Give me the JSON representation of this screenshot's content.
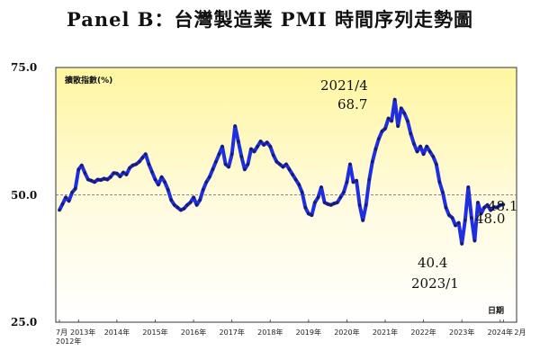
{
  "chart_data": {
    "type": "line",
    "title": "Panel B：台灣製造業 PMI 時間序列走勢圖",
    "ylabel": "擴散指數(%)",
    "xlabel": "日期",
    "ylim": [
      25,
      75
    ],
    "yticks": [
      "25.0",
      "50.0",
      "75.0"
    ],
    "reference_line": 50,
    "x_tick_labels": [
      "7月",
      "2013年",
      "2014年",
      "2015年",
      "2016年",
      "2017年",
      "2018年",
      "2019年",
      "2020年",
      "2021年",
      "2022年",
      "2023年",
      "2024年",
      "2月"
    ],
    "x_start_label": "2012年",
    "colors": {
      "line": "#1e2fe0",
      "marker": "#1a1a66",
      "bg_top": "#fff6a0",
      "bg_bottom": "#ffffff",
      "refline": "#666666"
    },
    "annotations": [
      {
        "text": "2021/4",
        "x": "2021-04",
        "y": 68.7
      },
      {
        "text": "68.7",
        "x": "2021-04",
        "y": 68.7
      },
      {
        "text": "40.4",
        "x": "2023-01",
        "y": 40.4
      },
      {
        "text": "2023/1",
        "x": "2023-01",
        "y": 40.4
      },
      {
        "text": "48.1",
        "x": "2024-02",
        "y": 48.1
      },
      {
        "text": "48.0",
        "x": "2024-01",
        "y": 48.0
      }
    ],
    "series": [
      {
        "x": [
          "2012-07",
          "2012-08",
          "2012-09",
          "2012-10",
          "2012-11",
          "2012-12",
          "2013-01",
          "2013-02",
          "2013-03",
          "2013-04",
          "2013-05",
          "2013-06",
          "2013-07",
          "2013-08",
          "2013-09",
          "2013-10",
          "2013-11",
          "2013-12",
          "2014-01",
          "2014-02",
          "2014-03",
          "2014-04",
          "2014-05",
          "2014-06",
          "2014-07",
          "2014-08",
          "2014-09",
          "2014-10",
          "2014-11",
          "2014-12",
          "2015-01",
          "2015-02",
          "2015-03",
          "2015-04",
          "2015-05",
          "2015-06",
          "2015-07",
          "2015-08",
          "2015-09",
          "2015-10",
          "2015-11",
          "2015-12",
          "2016-01",
          "2016-02",
          "2016-03",
          "2016-04",
          "2016-05",
          "2016-06",
          "2016-07",
          "2016-08",
          "2016-09",
          "2016-10",
          "2016-11",
          "2016-12",
          "2017-01",
          "2017-02",
          "2017-03",
          "2017-04",
          "2017-05",
          "2017-06",
          "2017-07",
          "2017-08",
          "2017-09",
          "2017-10",
          "2017-11",
          "2017-12",
          "2018-01",
          "2018-02",
          "2018-03",
          "2018-04",
          "2018-05",
          "2018-06",
          "2018-07",
          "2018-08",
          "2018-09",
          "2018-10",
          "2018-11",
          "2018-12",
          "2019-01",
          "2019-02",
          "2019-03",
          "2019-04",
          "2019-05",
          "2019-06",
          "2019-07",
          "2019-08",
          "2019-09",
          "2019-10",
          "2019-11",
          "2019-12",
          "2020-01",
          "2020-02",
          "2020-03",
          "2020-04",
          "2020-05",
          "2020-06",
          "2020-07",
          "2020-08",
          "2020-09",
          "2020-10",
          "2020-11",
          "2020-12",
          "2021-01",
          "2021-02",
          "2021-03",
          "2021-04",
          "2021-05",
          "2021-06",
          "2021-07",
          "2021-08",
          "2021-09",
          "2021-10",
          "2021-11",
          "2021-12",
          "2022-01",
          "2022-02",
          "2022-03",
          "2022-04",
          "2022-05",
          "2022-06",
          "2022-07",
          "2022-08",
          "2022-09",
          "2022-10",
          "2022-11",
          "2022-12",
          "2023-01",
          "2023-02",
          "2023-03",
          "2023-04",
          "2023-05",
          "2023-06",
          "2023-07",
          "2023-08",
          "2023-09",
          "2023-10",
          "2023-11",
          "2023-12",
          "2024-01",
          "2024-02"
        ],
        "values": [
          47.0,
          48.2,
          49.5,
          48.8,
          50.5,
          51.2,
          55.0,
          55.8,
          54.3,
          53.0,
          52.8,
          52.5,
          53.0,
          52.9,
          53.2,
          53.0,
          53.5,
          54.3,
          54.2,
          53.6,
          54.4,
          54.0,
          55.3,
          55.8,
          56.0,
          56.5,
          57.3,
          58.0,
          56.0,
          54.5,
          53.0,
          52.0,
          53.5,
          52.5,
          51.0,
          49.0,
          48.0,
          47.5,
          47.0,
          47.3,
          48.0,
          48.5,
          49.5,
          48.0,
          49.0,
          51.0,
          52.5,
          53.5,
          55.0,
          56.5,
          58.0,
          59.5,
          56.0,
          55.5,
          58.0,
          63.5,
          60.5,
          57.5,
          55.0,
          56.0,
          59.0,
          58.5,
          59.5,
          60.5,
          59.8,
          60.3,
          59.5,
          57.8,
          56.5,
          56.0,
          55.5,
          56.0,
          55.0,
          54.0,
          53.0,
          52.0,
          50.5,
          47.5,
          46.3,
          46.0,
          48.5,
          49.5,
          51.5,
          48.5,
          48.2,
          48.0,
          48.3,
          48.5,
          49.5,
          50.5,
          52.5,
          56.0,
          52.5,
          52.8,
          48.0,
          45.0,
          48.0,
          53.0,
          56.5,
          59.0,
          61.0,
          62.5,
          63.0,
          65.0,
          64.5,
          68.7,
          63.5,
          67.0,
          66.0,
          64.5,
          62.0,
          60.0,
          58.5,
          59.5,
          58.0,
          59.5,
          58.5,
          57.5,
          56.0,
          52.5,
          50.5,
          47.5,
          46.0,
          45.5,
          44.0,
          44.5,
          40.4,
          45.0,
          51.5,
          45.5,
          41.0,
          48.5,
          46.3,
          47.5,
          48.0,
          47.0,
          47.6,
          47.5,
          48.0,
          48.1
        ]
      }
    ]
  }
}
